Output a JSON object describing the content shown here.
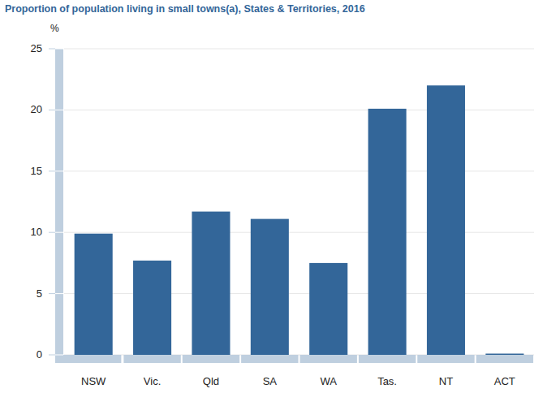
{
  "chart_data": {
    "type": "bar",
    "title": "Proportion of population living in small towns(a), States & Territories, 2016",
    "y_label": "%",
    "categories": [
      "NSW",
      "Vic.",
      "Qld",
      "SA",
      "WA",
      "Tas.",
      "NT",
      "ACT"
    ],
    "values": [
      9.9,
      7.7,
      11.7,
      11.1,
      7.5,
      20.1,
      22.0,
      0.1
    ],
    "color": "#336699",
    "ylim": [
      0,
      25
    ],
    "yticks": [
      0,
      5,
      10,
      15,
      20,
      25
    ],
    "grid": true
  }
}
